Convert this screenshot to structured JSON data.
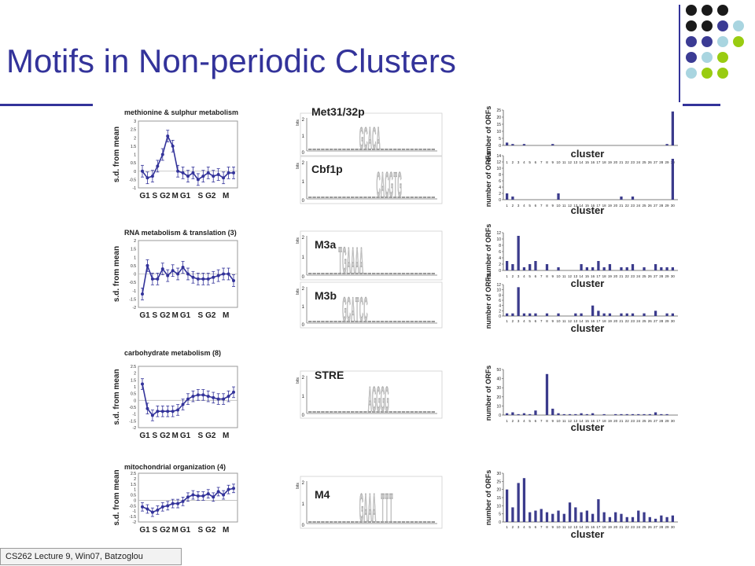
{
  "slide": {
    "title": "Motifs in Non-periodic Clusters",
    "footer": "CS262 Lecture 9, Win07, Batzoglou",
    "accent": "#33339a"
  },
  "decor_dots": [
    "#1a1a1a",
    "#1a1a1a",
    "#1a1a1a",
    "",
    "#1a1a1a",
    "#1a1a1a",
    "#3b3b94",
    "#a9d5e0",
    "#3b3b94",
    "#3b3b94",
    "#a9d5e0",
    "#99cc11",
    "#3b3b94",
    "#a9d5e0",
    "#99cc11",
    "",
    "#a9d5e0",
    "#99cc11",
    "#99cc11",
    ""
  ],
  "chart_data": [
    {
      "type": "line",
      "title": "methionine & sulphur metabolism",
      "ylabel": "s.d. from mean",
      "x_labels": [
        "G1",
        "S",
        "G2",
        "M",
        "G1",
        "S",
        "G2",
        "M"
      ],
      "y_ticks": [
        "3",
        "2.5",
        "2",
        "1.5",
        "1",
        "0.5",
        "0",
        "-0.5",
        "-1"
      ],
      "ylim": [
        -1,
        3
      ],
      "values": [
        0.0,
        -0.4,
        -0.3,
        0.3,
        1.0,
        2.1,
        1.5,
        0.0,
        -0.1,
        -0.3,
        -0.1,
        -0.5,
        -0.3,
        -0.1,
        -0.3,
        -0.2,
        -0.4,
        -0.1,
        -0.1
      ]
    },
    {
      "type": "line",
      "title": "RNA metabolism & translation  (3)",
      "ylabel": "s.d. from mean",
      "x_labels": [
        "G1",
        "S",
        "G2",
        "M",
        "G1",
        "S",
        "G2",
        "M"
      ],
      "y_ticks": [
        "2",
        "1.5",
        "1",
        "0.5",
        "0",
        "-0.5",
        "-1",
        "-1.5",
        "-2"
      ],
      "ylim": [
        -2,
        2
      ],
      "values": [
        -1.2,
        0.5,
        -0.3,
        -0.3,
        0.3,
        -0.1,
        0.2,
        0.0,
        0.4,
        0.0,
        -0.2,
        -0.3,
        -0.3,
        -0.3,
        -0.2,
        -0.1,
        0.0,
        0.0,
        -0.4
      ]
    },
    {
      "type": "line",
      "title": "carbohydrate metabolism (8)",
      "ylabel": "s.d. from mean",
      "x_labels": [
        "G1",
        "S",
        "G2",
        "M",
        "G1",
        "S",
        "G2",
        "M"
      ],
      "y_ticks": [
        "2.5",
        "2",
        "1.5",
        "1",
        "0.5",
        "0",
        "-0.5",
        "-1",
        "-1.5",
        "-2"
      ],
      "ylim": [
        -2,
        2.5
      ],
      "values": [
        1.2,
        -0.6,
        -1.1,
        -0.8,
        -0.8,
        -0.8,
        -0.8,
        -0.7,
        -0.3,
        0.1,
        0.3,
        0.4,
        0.4,
        0.3,
        0.2,
        0.1,
        0.1,
        0.3,
        0.6
      ]
    },
    {
      "type": "line",
      "title": "mitochondrial organization (4)",
      "ylabel": "s.d. from mean",
      "x_labels": [
        "G1",
        "S",
        "G2",
        "M",
        "G1",
        "S",
        "G2",
        "M"
      ],
      "y_ticks": [
        "2.5",
        "2",
        "1.5",
        "1",
        "0.5",
        "0",
        "-0.5",
        "-1",
        "-1.5",
        "-2"
      ],
      "ylim": [
        -2,
        2.5
      ],
      "values": [
        -0.6,
        -0.8,
        -1.1,
        -0.9,
        -0.6,
        -0.5,
        -0.3,
        -0.3,
        -0.1,
        0.3,
        0.5,
        0.4,
        0.4,
        0.6,
        0.3,
        0.8,
        0.5,
        1.0,
        1.1
      ]
    },
    {
      "type": "bar",
      "xlabel": "cluster",
      "ylabel": "number of ORFs",
      "categories": [
        "1",
        "2",
        "3",
        "4",
        "5",
        "6",
        "7",
        "8",
        "9",
        "10",
        "11",
        "12",
        "13",
        "14",
        "15",
        "16",
        "17",
        "18",
        "19",
        "20",
        "21",
        "22",
        "23",
        "24",
        "25",
        "26",
        "27",
        "28",
        "29",
        "30"
      ],
      "y_ticks": [
        "25",
        "20",
        "15",
        "10",
        "5",
        "0"
      ],
      "ylim": [
        0,
        25
      ],
      "values": [
        2,
        1,
        0,
        1,
        0,
        0,
        0,
        0,
        1,
        0,
        0,
        0,
        0,
        0,
        0,
        0,
        0,
        0,
        0,
        0,
        0,
        0,
        0,
        0,
        0,
        0,
        0,
        0,
        1,
        24
      ]
    },
    {
      "type": "bar",
      "xlabel": "cluster",
      "ylabel": "number of ORFs",
      "categories": [
        "1",
        "2",
        "3",
        "4",
        "5",
        "6",
        "7",
        "8",
        "9",
        "10",
        "11",
        "12",
        "13",
        "14",
        "15",
        "16",
        "17",
        "18",
        "19",
        "20",
        "21",
        "22",
        "23",
        "24",
        "25",
        "26",
        "27",
        "28",
        "29",
        "30"
      ],
      "y_ticks": [
        "14",
        "12",
        "10",
        "8",
        "6",
        "4",
        "2",
        "0"
      ],
      "ylim": [
        0,
        14
      ],
      "values": [
        2,
        1,
        0,
        0,
        0,
        0,
        0,
        0,
        0,
        2,
        0,
        0,
        0,
        0,
        0,
        0,
        0,
        0,
        0,
        0,
        1,
        0,
        1,
        0,
        0,
        0,
        0,
        0,
        0,
        13
      ]
    },
    {
      "type": "bar",
      "xlabel": "cluster",
      "ylabel": "number of ORFs",
      "categories": [
        "1",
        "2",
        "3",
        "4",
        "5",
        "6",
        "7",
        "8",
        "9",
        "10",
        "11",
        "12",
        "13",
        "14",
        "15",
        "16",
        "17",
        "18",
        "19",
        "20",
        "21",
        "22",
        "23",
        "24",
        "25",
        "26",
        "27",
        "28",
        "29",
        "30"
      ],
      "y_ticks": [
        "12",
        "10",
        "8",
        "6",
        "4",
        "2",
        "0"
      ],
      "ylim": [
        0,
        12
      ],
      "values": [
        3,
        2,
        11,
        1,
        2,
        3,
        0,
        2,
        0,
        1,
        0,
        0,
        0,
        2,
        1,
        1,
        3,
        1,
        2,
        0,
        1,
        1,
        2,
        0,
        1,
        0,
        2,
        1,
        1,
        1
      ]
    },
    {
      "type": "bar",
      "xlabel": "cluster",
      "ylabel": "number of ORFs",
      "categories": [
        "1",
        "2",
        "3",
        "4",
        "5",
        "6",
        "7",
        "8",
        "9",
        "10",
        "11",
        "12",
        "13",
        "14",
        "15",
        "16",
        "17",
        "18",
        "19",
        "20",
        "21",
        "22",
        "23",
        "24",
        "25",
        "26",
        "27",
        "28",
        "29",
        "30"
      ],
      "y_ticks": [
        "12",
        "10",
        "8",
        "6",
        "4",
        "2",
        "0"
      ],
      "ylim": [
        0,
        12
      ],
      "values": [
        1,
        1,
        11,
        1,
        1,
        1,
        0,
        1,
        0,
        1,
        0,
        0,
        1,
        1,
        0,
        4,
        2,
        1,
        1,
        0,
        1,
        1,
        1,
        0,
        1,
        0,
        2,
        0,
        1,
        1
      ]
    },
    {
      "type": "bar",
      "xlabel": "cluster",
      "ylabel": "number of ORFs",
      "categories": [
        "1",
        "2",
        "3",
        "4",
        "5",
        "6",
        "7",
        "8",
        "9",
        "10",
        "11",
        "12",
        "13",
        "14",
        "15",
        "16",
        "17",
        "18",
        "19",
        "20",
        "21",
        "22",
        "23",
        "24",
        "25",
        "26",
        "27",
        "28",
        "29",
        "30"
      ],
      "y_ticks": [
        "50",
        "40",
        "30",
        "20",
        "10",
        "0"
      ],
      "ylim": [
        0,
        50
      ],
      "values": [
        2,
        3,
        1,
        2,
        1,
        5,
        0,
        45,
        7,
        2,
        1,
        1,
        1,
        2,
        1,
        2,
        0,
        1,
        0,
        1,
        1,
        1,
        1,
        1,
        1,
        1,
        3,
        1,
        1,
        0
      ]
    },
    {
      "type": "bar",
      "xlabel": "cluster",
      "ylabel": "number of ORFs",
      "categories": [
        "1",
        "2",
        "3",
        "4",
        "5",
        "6",
        "7",
        "8",
        "9",
        "10",
        "11",
        "12",
        "13",
        "14",
        "15",
        "16",
        "17",
        "18",
        "19",
        "20",
        "21",
        "22",
        "23",
        "24",
        "25",
        "26",
        "27",
        "28",
        "29",
        "30"
      ],
      "y_ticks": [
        "30",
        "25",
        "20",
        "15",
        "10",
        "5",
        "0"
      ],
      "ylim": [
        0,
        30
      ],
      "values": [
        20,
        9,
        24,
        27,
        6,
        7,
        8,
        6,
        5,
        7,
        5,
        12,
        9,
        6,
        7,
        5,
        14,
        6,
        3,
        6,
        5,
        3,
        3,
        7,
        6,
        3,
        2,
        4,
        3,
        4
      ]
    }
  ],
  "motifs": [
    {
      "label": "Met31/32p",
      "letters": "GCACA"
    },
    {
      "label": "Cbf1p",
      "letters": "CACGTG"
    },
    {
      "label": "M3a",
      "letters": "TGAAAA"
    },
    {
      "label": "M3b",
      "letters": "GCATCC"
    },
    {
      "label": "STRE",
      "letters": "AGGGG"
    },
    {
      "label": "M4",
      "letters": "GAAA TTT"
    }
  ],
  "motif_axis": {
    "ylabel": "bits",
    "ticks": [
      "2",
      "1",
      "0"
    ]
  }
}
